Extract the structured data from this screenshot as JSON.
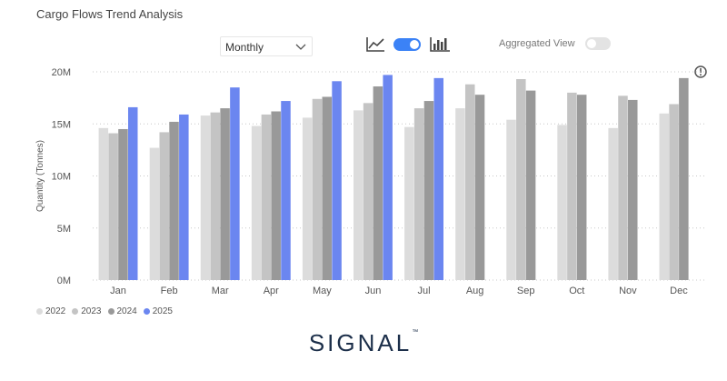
{
  "header": {
    "title": "Cargo Flows Trend Analysis",
    "period_select": "Monthly",
    "aggregated_label": "Aggregated View"
  },
  "icons": {
    "line_chart": "line-chart-icon",
    "toggle": "view-toggle",
    "bar_chart": "bar-chart-icon",
    "info": "info-icon"
  },
  "brand": {
    "name": "SIGNAL",
    "mark": "™"
  },
  "chart_data": {
    "type": "bar",
    "title": "Cargo Flows Trend Analysis",
    "ylabel": "Quantity (Tonnes)",
    "xlabel": "",
    "ylim": [
      0,
      20000000
    ],
    "yticks": [
      0,
      5000000,
      10000000,
      15000000,
      20000000
    ],
    "ytick_labels": [
      "0M",
      "5M",
      "10M",
      "15M",
      "20M"
    ],
    "grid": true,
    "legend_position": "bottom-left",
    "categories": [
      "Jan",
      "Feb",
      "Mar",
      "Apr",
      "May",
      "Jun",
      "Jul",
      "Aug",
      "Sep",
      "Oct",
      "Nov",
      "Dec"
    ],
    "series": [
      {
        "name": "2022",
        "color": "#dcdcdc",
        "values": [
          14.6,
          12.7,
          15.8,
          14.8,
          15.6,
          16.3,
          14.7,
          16.5,
          15.4,
          14.9,
          14.6,
          16.0
        ]
      },
      {
        "name": "2023",
        "color": "#c4c4c4",
        "values": [
          14.1,
          14.2,
          16.1,
          15.9,
          17.4,
          17.0,
          16.5,
          18.8,
          19.3,
          18.0,
          17.7,
          16.9
        ]
      },
      {
        "name": "2024",
        "color": "#999999",
        "values": [
          14.5,
          15.2,
          16.5,
          16.2,
          17.6,
          18.6,
          17.2,
          17.8,
          18.2,
          17.8,
          17.3,
          19.4
        ]
      },
      {
        "name": "2025",
        "color": "#6b86f0",
        "values": [
          16.6,
          15.9,
          18.5,
          17.2,
          19.1,
          19.7,
          19.4,
          null,
          null,
          null,
          null,
          null
        ]
      }
    ],
    "value_unit": "M"
  }
}
